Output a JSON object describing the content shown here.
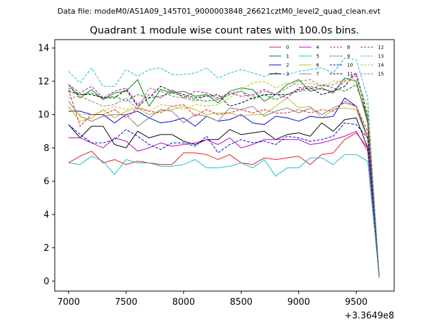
{
  "suptitle": "Data file: modeM0/AS1A09_145T01_9000003848_26621cztM0_level2_quad_clean.evt",
  "chart_data": {
    "type": "line",
    "title": "Quadrant 1 module wise count rates with 100.0s bins.",
    "xlabel": "",
    "ylabel": "",
    "x_offset_label": "+3.3649e8",
    "xlim": [
      6880,
      9830
    ],
    "ylim": [
      -0.6,
      14.5
    ],
    "x_ticks": [
      7000,
      7500,
      8000,
      8500,
      9000,
      9500
    ],
    "y_ticks": [
      0,
      2,
      4,
      6,
      8,
      10,
      12,
      14
    ],
    "grid": false,
    "legend_position": "top-right",
    "x": [
      7000,
      7100,
      7200,
      7300,
      7400,
      7500,
      7600,
      7700,
      7800,
      7900,
      8000,
      8100,
      8200,
      8300,
      8400,
      8500,
      8600,
      8700,
      8800,
      8900,
      9000,
      9100,
      9200,
      9300,
      9400,
      9500,
      9600,
      9700
    ],
    "series": [
      {
        "name": "0",
        "color": "#e41a1c",
        "dash": "solid",
        "values": [
          7.1,
          7.5,
          7.8,
          7.1,
          7.3,
          7.0,
          7.2,
          7.1,
          7.0,
          7.0,
          7.7,
          7.7,
          7.6,
          7.3,
          7.6,
          7.1,
          7.0,
          7.4,
          7.3,
          7.4,
          7.5,
          7.0,
          7.6,
          7.7,
          8.5,
          8.9,
          8.0,
          0.2
        ]
      },
      {
        "name": "1",
        "color": "#008000",
        "dash": "solid",
        "values": [
          11.8,
          11.0,
          11.5,
          10.9,
          11.3,
          11.4,
          12.1,
          10.5,
          11.5,
          11.3,
          11.4,
          11.1,
          11.2,
          10.7,
          11.4,
          11.6,
          11.5,
          10.8,
          11.2,
          11.8,
          12.1,
          11.4,
          11.6,
          11.3,
          12.2,
          12.0,
          9.5,
          0.3
        ]
      },
      {
        "name": "2",
        "color": "#0000dd",
        "dash": "solid",
        "values": [
          10.2,
          10.2,
          10.0,
          10.0,
          9.5,
          10.0,
          10.2,
          9.8,
          9.5,
          9.6,
          9.8,
          9.3,
          9.9,
          9.6,
          9.7,
          10.0,
          9.5,
          9.4,
          9.9,
          9.8,
          9.6,
          9.9,
          9.8,
          9.9,
          11.0,
          10.5,
          8.5,
          0.2
        ]
      },
      {
        "name": "3",
        "color": "#000000",
        "dash": "solid",
        "values": [
          9.4,
          8.6,
          9.3,
          9.3,
          8.2,
          8.0,
          9.0,
          8.6,
          8.8,
          8.8,
          8.4,
          8.2,
          8.5,
          8.5,
          9.1,
          8.8,
          8.9,
          9.0,
          8.5,
          8.8,
          8.9,
          8.7,
          9.5,
          9.0,
          9.7,
          9.8,
          8.0,
          0.2
        ]
      },
      {
        "name": "4",
        "color": "#c000c0",
        "dash": "solid",
        "values": [
          8.6,
          8.6,
          8.3,
          8.0,
          8.6,
          8.4,
          7.8,
          8.0,
          8.3,
          8.1,
          8.2,
          8.3,
          8.5,
          8.2,
          8.6,
          8.0,
          8.2,
          8.5,
          8.5,
          8.5,
          8.5,
          8.2,
          8.3,
          8.5,
          8.7,
          9.0,
          7.8,
          0.2
        ]
      },
      {
        "name": "5",
        "color": "#17becf",
        "dash": "solid",
        "values": [
          7.1,
          7.0,
          7.5,
          7.2,
          6.4,
          7.3,
          7.1,
          7.1,
          6.9,
          6.9,
          7.0,
          7.3,
          6.8,
          6.8,
          6.9,
          7.1,
          6.8,
          7.3,
          6.3,
          6.8,
          6.8,
          7.4,
          7.4,
          7.0,
          7.6,
          7.6,
          7.2,
          0.2
        ]
      },
      {
        "name": "6",
        "color": "#bcbd22",
        "dash": "solid",
        "values": [
          10.5,
          9.6,
          9.8,
          10.3,
          9.8,
          10.2,
          10.4,
          10.0,
          10.2,
          10.3,
          10.5,
          10.3,
          10.0,
          10.1,
          10.1,
          9.9,
          10.0,
          10.0,
          10.5,
          11.0,
          10.4,
          10.5,
          9.8,
          10.3,
          10.4,
          10.3,
          8.5,
          0.3
        ]
      },
      {
        "name": "7",
        "color": "#7f7f7f",
        "dash": "solid",
        "values": [
          10.8,
          9.9,
          9.6,
          9.9,
          10.0,
          10.0,
          9.3,
          9.8,
          10.3,
          10.2,
          9.5,
          10.0,
          9.9,
          9.6,
          10.4,
          10.3,
          10.5,
          9.9,
          10.2,
          10.4,
          10.1,
          10.4,
          10.0,
          10.4,
          10.7,
          10.5,
          8.7,
          0.3
        ]
      },
      {
        "name": "8",
        "color": "#e41a1c",
        "dash": "dashed",
        "values": [
          11.5,
          9.3,
          10.0,
          10.0,
          10.3,
          9.8,
          10.4,
          10.2,
          10.1,
          10.5,
          10.6,
          9.9,
          10.3,
          10.0,
          10.1,
          10.3,
          10.1,
          10.3,
          10.1,
          10.1,
          10.3,
          10.1,
          10.3,
          10.2,
          10.8,
          10.5,
          9.0,
          0.3
        ]
      },
      {
        "name": "9",
        "color": "#008000",
        "dash": "dashed",
        "values": [
          11.6,
          11.2,
          11.3,
          11.0,
          11.1,
          10.8,
          11.2,
          11.0,
          11.1,
          11.3,
          11.1,
          10.9,
          10.8,
          10.9,
          11.2,
          11.4,
          10.9,
          11.2,
          10.9,
          11.2,
          11.4,
          11.5,
          11.8,
          11.6,
          11.4,
          11.8,
          9.8,
          0.3
        ]
      },
      {
        "name": "10",
        "color": "#0000dd",
        "dash": "dashed",
        "values": [
          9.4,
          8.8,
          8.3,
          8.3,
          8.5,
          9.1,
          8.7,
          8.2,
          7.9,
          8.3,
          8.3,
          8.1,
          8.7,
          7.7,
          8.2,
          8.5,
          8.3,
          8.4,
          8.2,
          8.7,
          8.6,
          8.4,
          8.5,
          8.7,
          9.5,
          9.4,
          8.6,
          0.3
        ]
      },
      {
        "name": "11",
        "color": "#000000",
        "dash": "dashed",
        "values": [
          11.4,
          11.2,
          11.2,
          11.0,
          11.0,
          11.5,
          10.5,
          11.0,
          11.7,
          11.4,
          11.2,
          11.0,
          11.1,
          11.2,
          10.5,
          10.7,
          11.0,
          11.2,
          11.2,
          11.2,
          11.5,
          11.6,
          11.2,
          11.4,
          11.7,
          12.5,
          9.7,
          0.3
        ]
      },
      {
        "name": "12",
        "color": "#c000c0",
        "dash": "dashed",
        "values": [
          11.8,
          11.3,
          11.7,
          11.0,
          11.4,
          11.6,
          10.6,
          11.2,
          11.0,
          11.5,
          11.0,
          11.4,
          11.3,
          11.0,
          11.3,
          11.1,
          11.2,
          11.5,
          11.2,
          11.0,
          11.6,
          11.7,
          11.5,
          11.4,
          12.0,
          12.5,
          10.0,
          0.3
        ]
      },
      {
        "name": "13",
        "color": "#17becf",
        "dash": "dashed",
        "values": [
          12.6,
          11.9,
          12.8,
          11.7,
          11.7,
          12.7,
          12.3,
          12.7,
          12.8,
          12.4,
          12.4,
          12.5,
          12.8,
          12.2,
          12.5,
          12.7,
          12.5,
          12.3,
          12.5,
          12.4,
          12.6,
          12.7,
          12.8,
          12.5,
          13.4,
          13.3,
          11.0,
          0.3
        ]
      },
      {
        "name": "14",
        "color": "#bcbd22",
        "dash": "dashed",
        "values": [
          10.4,
          10.0,
          10.0,
          10.2,
          10.5,
          10.3,
          10.5,
          10.2,
          10.6,
          10.5,
          10.3,
          10.6,
          10.5,
          10.6,
          11.0,
          11.5,
          11.9,
          12.0,
          11.6,
          11.9,
          11.8,
          11.9,
          11.7,
          12.0,
          12.0,
          12.1,
          10.5,
          0.3
        ]
      },
      {
        "name": "15",
        "color": "#7f7f7f",
        "dash": "dashed",
        "values": [
          11.0,
          11.1,
          10.8,
          10.5,
          10.6,
          11.0,
          10.3,
          11.6,
          11.4,
          11.1,
          11.0,
          10.8,
          11.2,
          10.9,
          11.3,
          11.4,
          11.1,
          11.4,
          11.2,
          11.6,
          12.0,
          12.1,
          11.7,
          11.8,
          12.1,
          12.3,
          10.0,
          0.3
        ]
      }
    ]
  }
}
